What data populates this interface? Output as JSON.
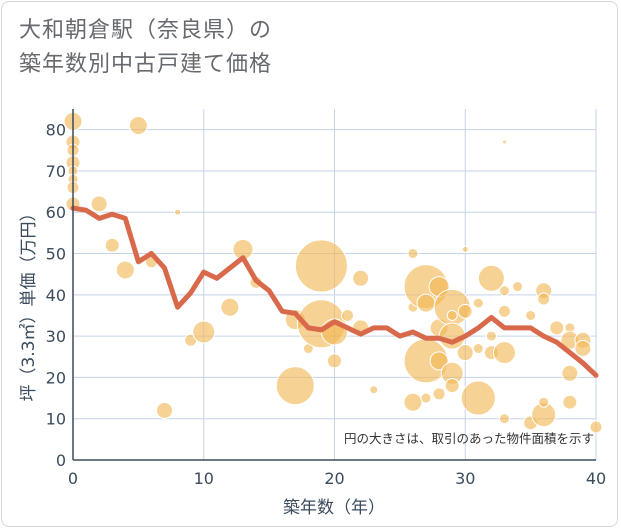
{
  "chart_data": {
    "type": "scatter",
    "title": [
      "大和朝倉駅（奈良県）の",
      "築年数別中古戸建て価格"
    ],
    "xlabel": "築年数（年）",
    "ylabel": "坪（3.3㎡）単価（万円）",
    "xlim": [
      0,
      40
    ],
    "ylim": [
      0,
      85
    ],
    "xticks": [
      0,
      10,
      20,
      30,
      40
    ],
    "yticks": [
      0,
      10,
      20,
      30,
      40,
      50,
      60,
      70,
      80
    ],
    "grid": true,
    "note": "円の大きさは、取引のあった物件面積を示す",
    "bubble_color": "#f2b654",
    "line_color": "#d9694b",
    "points": [
      {
        "x": 0,
        "y": 82,
        "r": 9
      },
      {
        "x": 0,
        "y": 77,
        "r": 7
      },
      {
        "x": 0,
        "y": 75,
        "r": 6
      },
      {
        "x": 0,
        "y": 72,
        "r": 7
      },
      {
        "x": 0,
        "y": 70,
        "r": 5
      },
      {
        "x": 0,
        "y": 68,
        "r": 5
      },
      {
        "x": 0,
        "y": 66,
        "r": 6
      },
      {
        "x": 0,
        "y": 62,
        "r": 7
      },
      {
        "x": 2,
        "y": 62,
        "r": 8
      },
      {
        "x": 3,
        "y": 52,
        "r": 7
      },
      {
        "x": 4,
        "y": 46,
        "r": 9
      },
      {
        "x": 5,
        "y": 81,
        "r": 9
      },
      {
        "x": 6,
        "y": 48,
        "r": 6
      },
      {
        "x": 7,
        "y": 12,
        "r": 8
      },
      {
        "x": 8,
        "y": 60,
        "r": 3
      },
      {
        "x": 9,
        "y": 29,
        "r": 6
      },
      {
        "x": 10,
        "y": 31,
        "r": 11
      },
      {
        "x": 12,
        "y": 37,
        "r": 9
      },
      {
        "x": 13,
        "y": 51,
        "r": 10
      },
      {
        "x": 14,
        "y": 43,
        "r": 6
      },
      {
        "x": 17,
        "y": 18,
        "r": 19
      },
      {
        "x": 17,
        "y": 34,
        "r": 10
      },
      {
        "x": 18,
        "y": 27,
        "r": 5
      },
      {
        "x": 19,
        "y": 47,
        "r": 26
      },
      {
        "x": 19,
        "y": 33,
        "r": 24
      },
      {
        "x": 20,
        "y": 31,
        "r": 13
      },
      {
        "x": 20,
        "y": 24,
        "r": 7
      },
      {
        "x": 21,
        "y": 35,
        "r": 6
      },
      {
        "x": 22,
        "y": 44,
        "r": 8
      },
      {
        "x": 22,
        "y": 32,
        "r": 8
      },
      {
        "x": 23,
        "y": 17,
        "r": 4
      },
      {
        "x": 26,
        "y": 50,
        "r": 5
      },
      {
        "x": 26,
        "y": 37,
        "r": 5
      },
      {
        "x": 26,
        "y": 14,
        "r": 9
      },
      {
        "x": 27,
        "y": 42,
        "r": 22
      },
      {
        "x": 27,
        "y": 24,
        "r": 22
      },
      {
        "x": 27,
        "y": 38,
        "r": 9
      },
      {
        "x": 27,
        "y": 15,
        "r": 5
      },
      {
        "x": 28,
        "y": 42,
        "r": 10
      },
      {
        "x": 28,
        "y": 32,
        "r": 9
      },
      {
        "x": 28,
        "y": 24,
        "r": 9
      },
      {
        "x": 28,
        "y": 16,
        "r": 6
      },
      {
        "x": 29,
        "y": 37,
        "r": 18
      },
      {
        "x": 29,
        "y": 30,
        "r": 13
      },
      {
        "x": 29,
        "y": 21,
        "r": 11
      },
      {
        "x": 29,
        "y": 18,
        "r": 7
      },
      {
        "x": 29,
        "y": 35,
        "r": 5
      },
      {
        "x": 30,
        "y": 51,
        "r": 3
      },
      {
        "x": 30,
        "y": 36,
        "r": 7
      },
      {
        "x": 30,
        "y": 26,
        "r": 8
      },
      {
        "x": 31,
        "y": 15,
        "r": 17
      },
      {
        "x": 31,
        "y": 38,
        "r": 5
      },
      {
        "x": 31,
        "y": 27,
        "r": 5
      },
      {
        "x": 32,
        "y": 44,
        "r": 13
      },
      {
        "x": 32,
        "y": 30,
        "r": 5
      },
      {
        "x": 32,
        "y": 26,
        "r": 7
      },
      {
        "x": 33,
        "y": 77,
        "r": 2
      },
      {
        "x": 33,
        "y": 41,
        "r": 5
      },
      {
        "x": 33,
        "y": 36,
        "r": 6
      },
      {
        "x": 33,
        "y": 26,
        "r": 11
      },
      {
        "x": 33,
        "y": 10,
        "r": 5
      },
      {
        "x": 34,
        "y": 42,
        "r": 5
      },
      {
        "x": 35,
        "y": 35,
        "r": 5
      },
      {
        "x": 35,
        "y": 9,
        "r": 7
      },
      {
        "x": 36,
        "y": 41,
        "r": 8
      },
      {
        "x": 36,
        "y": 39,
        "r": 6
      },
      {
        "x": 36,
        "y": 11,
        "r": 12
      },
      {
        "x": 36,
        "y": 14,
        "r": 5
      },
      {
        "x": 37,
        "y": 32,
        "r": 7
      },
      {
        "x": 38,
        "y": 32,
        "r": 5
      },
      {
        "x": 38,
        "y": 29,
        "r": 9
      },
      {
        "x": 38,
        "y": 21,
        "r": 8
      },
      {
        "x": 38,
        "y": 14,
        "r": 7
      },
      {
        "x": 39,
        "y": 29,
        "r": 8
      },
      {
        "x": 39,
        "y": 27,
        "r": 8
      },
      {
        "x": 40,
        "y": 8,
        "r": 6
      }
    ],
    "line": {
      "name": "",
      "x": [
        0,
        1,
        2,
        3,
        4,
        5,
        6,
        7,
        8,
        9,
        10,
        11,
        12,
        13,
        14,
        15,
        16,
        17,
        18,
        19,
        20,
        21,
        22,
        23,
        24,
        25,
        26,
        27,
        28,
        29,
        30,
        31,
        32,
        33,
        34,
        35,
        36,
        37,
        38,
        39,
        40
      ],
      "y": [
        61,
        60.5,
        58.5,
        59.5,
        58.5,
        48,
        50,
        46.5,
        37,
        40.5,
        45.5,
        44,
        46.5,
        49,
        43.5,
        41,
        36,
        35.5,
        32,
        31.5,
        33.5,
        32,
        30.5,
        32,
        32,
        30,
        31,
        29.5,
        29.5,
        28.5,
        30,
        32,
        34.5,
        32,
        32,
        32,
        30,
        28.5,
        26,
        23.5,
        20.5
      ]
    }
  }
}
